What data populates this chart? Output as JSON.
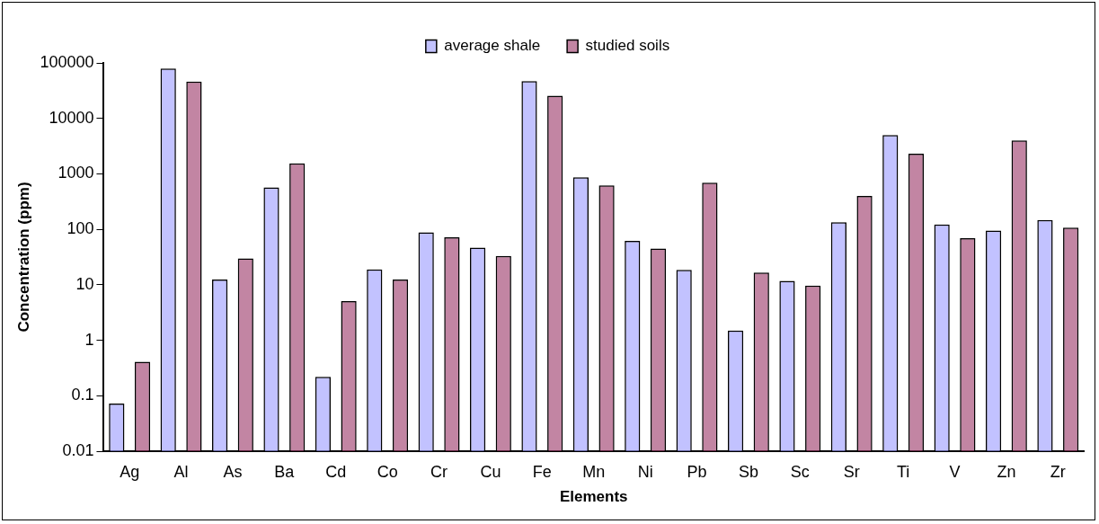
{
  "chart_data": {
    "type": "bar",
    "xlabel": "Elements",
    "ylabel": "Concentration (ppm)",
    "categories": [
      "Ag",
      "Al",
      "As",
      "Ba",
      "Cd",
      "Co",
      "Cr",
      "Cu",
      "Fe",
      "Mn",
      "Ni",
      "Pb",
      "Sb",
      "Sc",
      "Sr",
      "Ti",
      "V",
      "Zn",
      "Zr"
    ],
    "series": [
      {
        "name": "average shale",
        "color": "#9999ff",
        "values": [
          0.072,
          79000,
          12.4,
          570,
          0.22,
          19,
          88,
          47,
          47000,
          870,
          62,
          18.6,
          1.5,
          11.8,
          134,
          5000,
          122,
          95,
          148
        ]
      },
      {
        "name": "studied soils",
        "color": "#993366",
        "values": [
          0.41,
          46000,
          30,
          1550,
          5.1,
          12.4,
          72,
          33,
          25700,
          620,
          45,
          690,
          16.6,
          9.7,
          400,
          2300,
          69,
          4000,
          107
        ]
      }
    ],
    "log": "y",
    "ylim": [
      0.01,
      100000
    ],
    "yticks": [
      0.01,
      0.1,
      1,
      10,
      100,
      1000,
      10000,
      100000
    ],
    "grid": false,
    "legend": "top"
  }
}
